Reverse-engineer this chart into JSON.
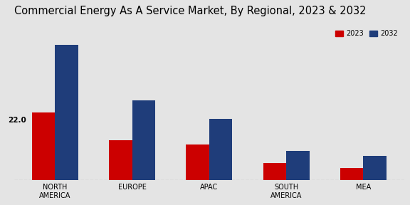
{
  "title": "Commercial Energy As A Service Market, By Regional, 2023 & 2032",
  "categories": [
    "NORTH\nAMERICA",
    "EUROPE",
    "APAC",
    "SOUTH\nAMERICA",
    "MEA"
  ],
  "values_2023": [
    22.0,
    13.0,
    11.5,
    5.5,
    4.0
  ],
  "values_2032": [
    44.0,
    26.0,
    20.0,
    9.5,
    8.0
  ],
  "annotation": "22.0",
  "color_2023": "#cc0000",
  "color_2032": "#1f3d7a",
  "background_color": "#e4e4e4",
  "legend_labels": [
    "2023",
    "2032"
  ],
  "bar_width": 0.3,
  "title_fontsize": 10.5,
  "label_fontsize": 7.5,
  "tick_fontsize": 7.0,
  "annot_fontsize": 7.5
}
